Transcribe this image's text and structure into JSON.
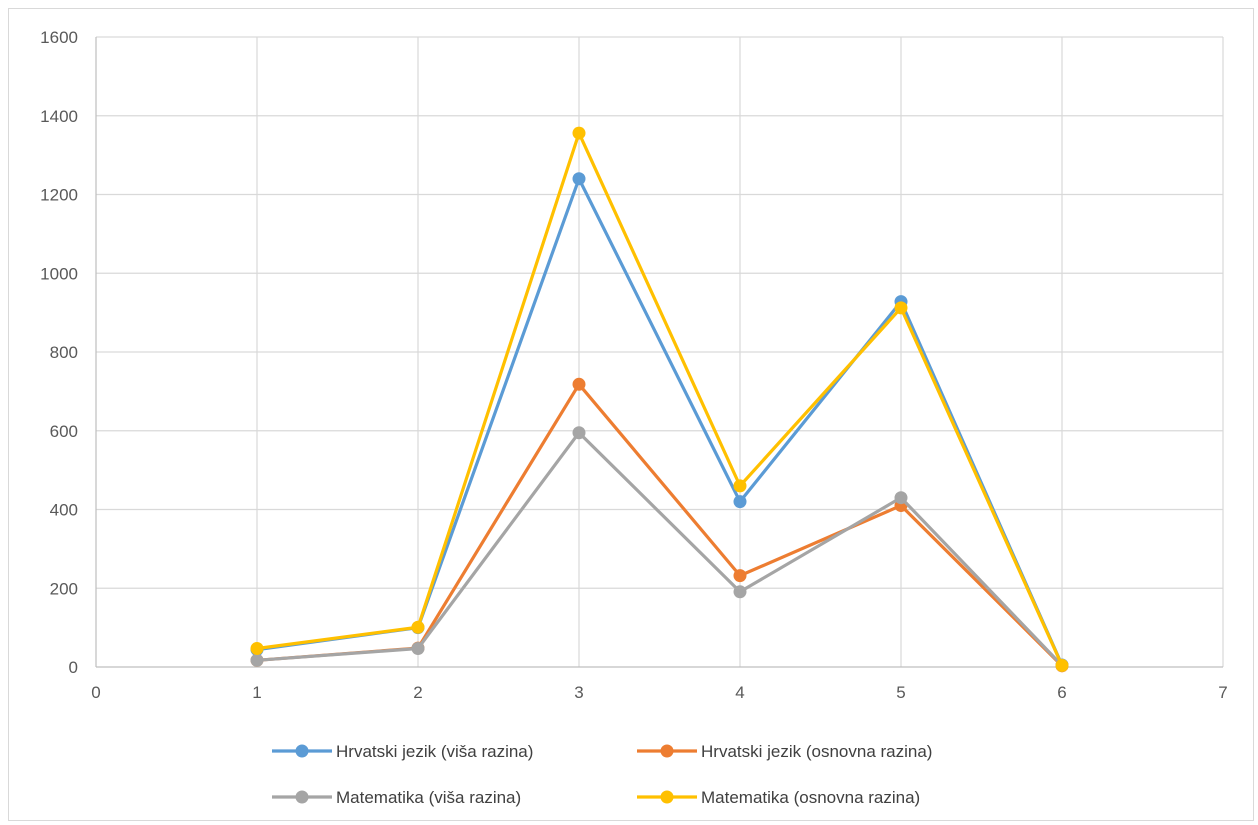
{
  "chart_data": {
    "type": "scatter",
    "mode": "lines+markers",
    "title": "",
    "xlabel": "",
    "ylabel": "",
    "xlim": [
      0,
      7
    ],
    "ylim": [
      0,
      1600
    ],
    "x_ticks": [
      0,
      1,
      2,
      3,
      4,
      5,
      6,
      7
    ],
    "y_ticks": [
      0,
      200,
      400,
      600,
      800,
      1000,
      1200,
      1400,
      1600
    ],
    "grid": true,
    "legend_position": "bottom",
    "x": [
      1,
      2,
      3,
      4,
      5,
      6
    ],
    "series": [
      {
        "name": "Hrvatski jezik (viša razina)",
        "color": "#5B9BD5",
        "values": [
          44,
          100,
          1240,
          420,
          928,
          5
        ]
      },
      {
        "name": "Hrvatski jezik (osnovna razina)",
        "color": "#ED7D31",
        "values": [
          17,
          48,
          718,
          232,
          410,
          3
        ]
      },
      {
        "name": "Matematika (viša razina)",
        "color": "#A5A5A5",
        "values": [
          17,
          47,
          595,
          191,
          430,
          4
        ]
      },
      {
        "name": "Matematika (osnovna razina)",
        "color": "#FFC000",
        "values": [
          47,
          101,
          1356,
          460,
          912,
          4
        ]
      }
    ]
  }
}
